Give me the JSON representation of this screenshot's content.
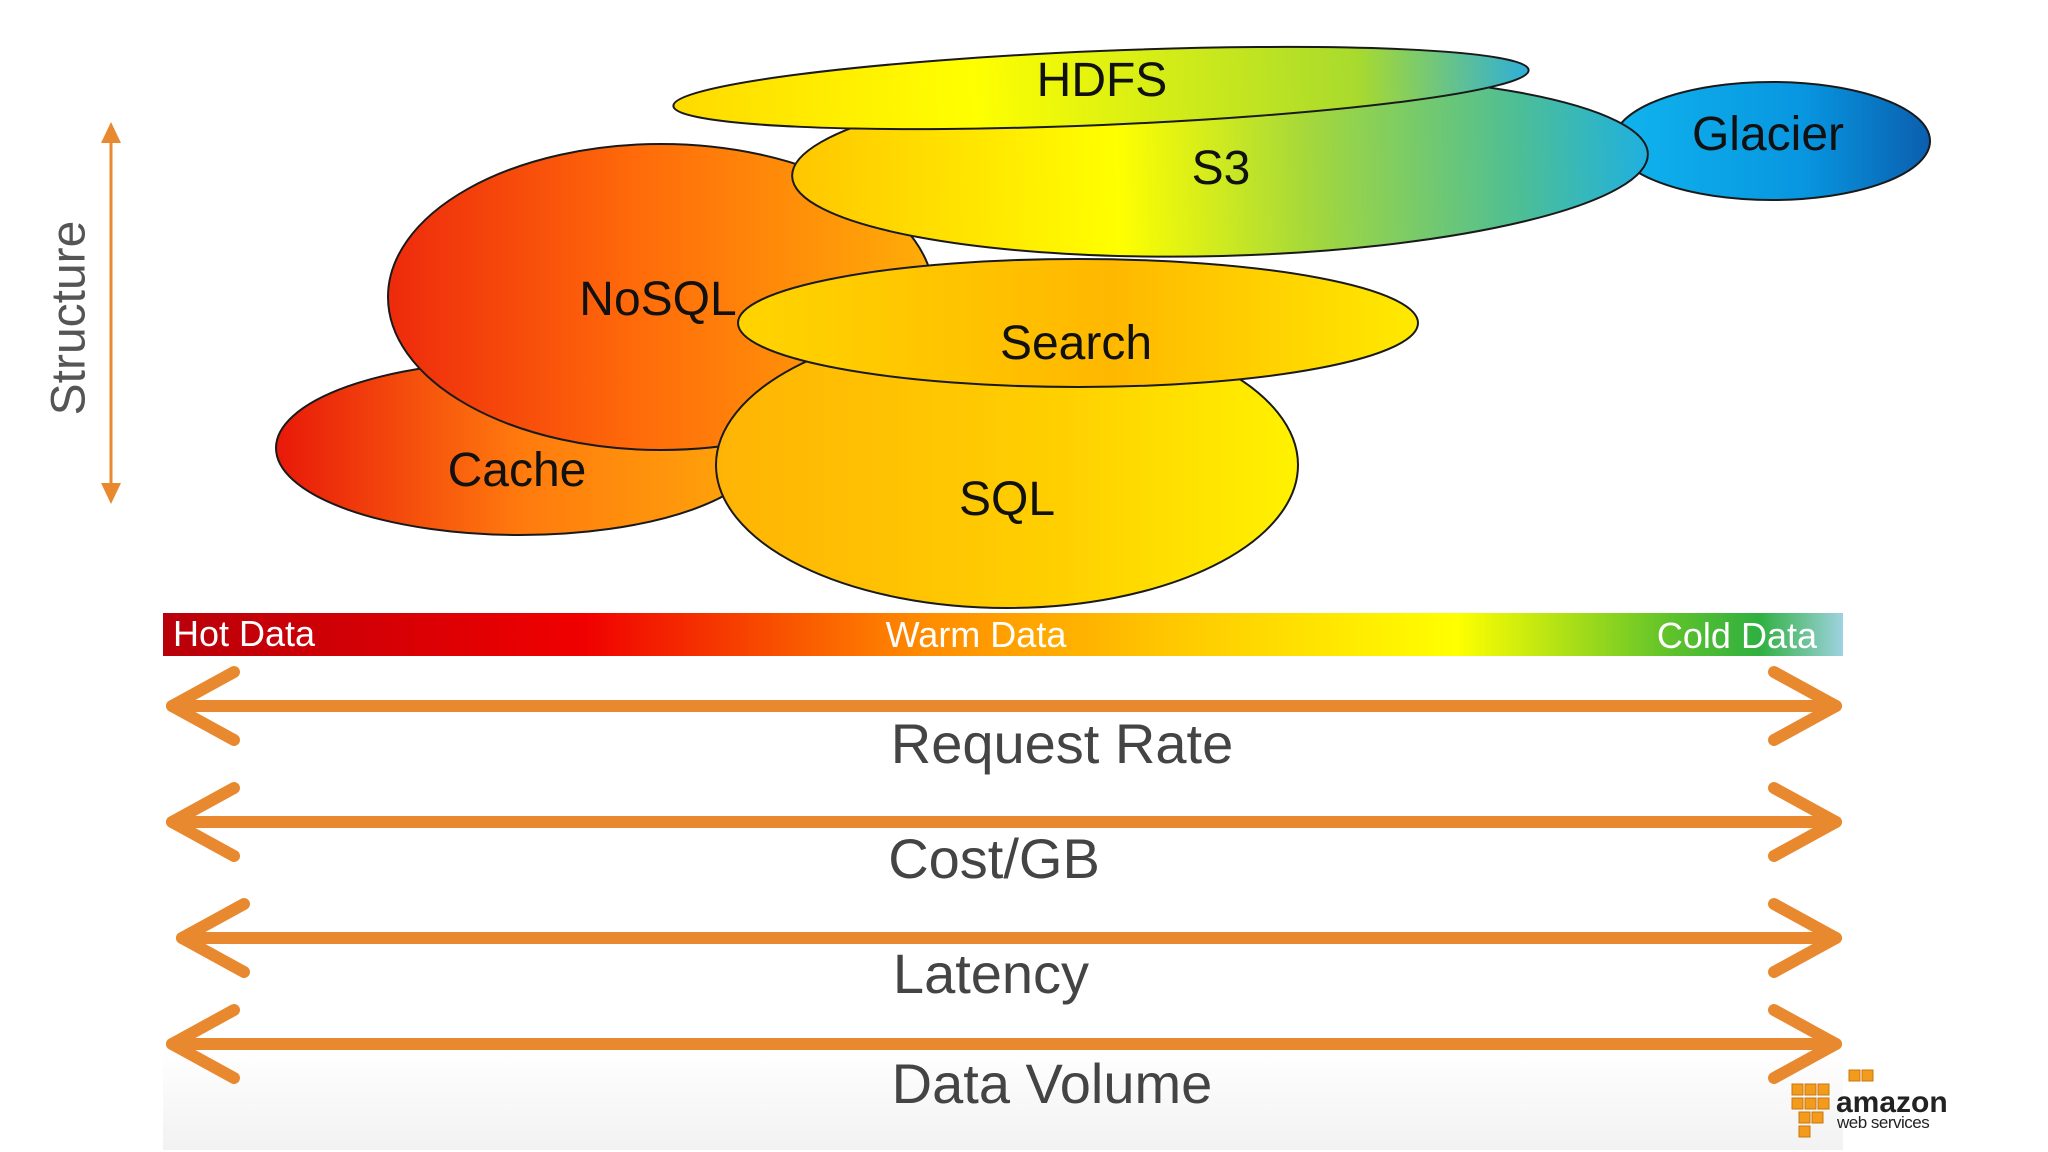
{
  "structure_label": "Structure",
  "stores": {
    "hdfs": "HDFS",
    "glacier": "Glacier",
    "s3": "S3",
    "nosql": "NoSQL",
    "cache": "Cache",
    "sql": "SQL",
    "search": "Search"
  },
  "temperature_bar": {
    "hot": "Hot Data",
    "warm": "Warm Data",
    "cold": "Cold Data"
  },
  "dimensions": {
    "request_rate": "Request Rate",
    "cost_per_gb": "Cost/GB",
    "latency": "Latency",
    "data_volume": "Data Volume"
  },
  "logo": {
    "brand": "amazon",
    "sub": "web services"
  },
  "colors": {
    "arrow": "#E8892F",
    "text": "#444444",
    "hot": "#C00000",
    "warm": "#FFC000",
    "cold": "#92CDDC"
  }
}
